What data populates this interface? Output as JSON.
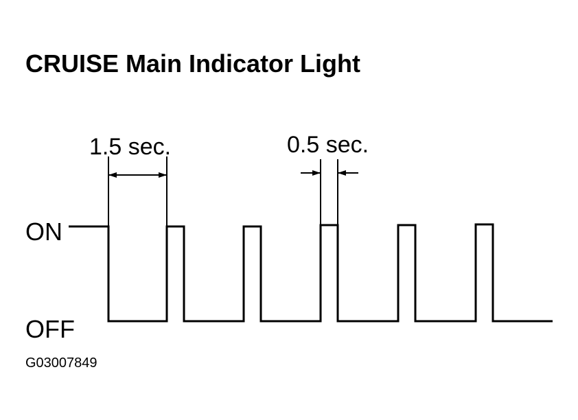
{
  "title": "CRUISE Main Indicator Light",
  "labels": {
    "long_interval": "1.5 sec.",
    "short_interval": "0.5 sec.",
    "on": "ON",
    "off": "OFF"
  },
  "figure_id": "G03007849"
}
